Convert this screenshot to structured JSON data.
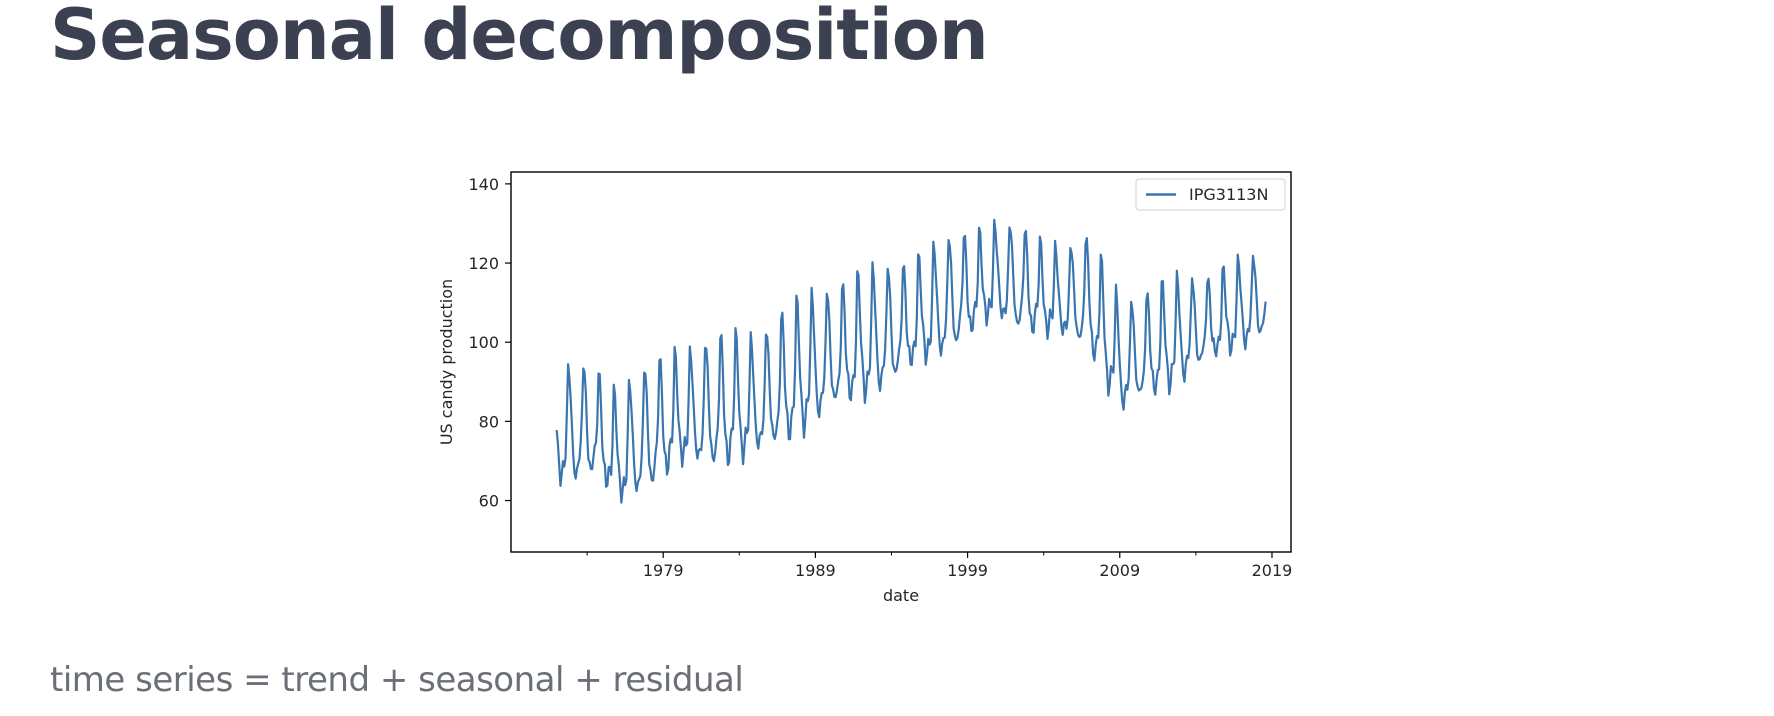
{
  "page": {
    "title": "Seasonal decomposition",
    "caption": "time series = trend + seasonal + residual"
  },
  "chart_data": {
    "type": "line",
    "title": "",
    "xlabel": "date",
    "ylabel": "US candy production",
    "xlim": [
      "1969-01",
      "2020-04"
    ],
    "ylim": [
      47,
      143
    ],
    "x_ticks": [
      "1979",
      "1989",
      "1999",
      "2009",
      "2019"
    ],
    "x_minor_tick_years": [
      1974,
      1984,
      1994,
      2004,
      2014
    ],
    "y_ticks": [
      60,
      80,
      100,
      120,
      140
    ],
    "grid": false,
    "legend": "top-right",
    "colors": {
      "series": "#3b75af",
      "axes": "#000000"
    },
    "series": [
      {
        "name": "IPG3113N",
        "x_start": "1972-01",
        "x_end": "2018-08",
        "frequency": "monthly",
        "trend_knots": {
          "x": [
            "1972-01",
            "1974-06",
            "1976-01",
            "1980-01",
            "1985-01",
            "1990-01",
            "1994-01",
            "1998-01",
            "2001-01",
            "2004-01",
            "2007-01",
            "2009-01",
            "2012-01",
            "2015-01",
            "2018-08"
          ],
          "y": [
            78,
            80,
            73,
            83,
            86,
            98,
            104,
            112,
            118,
            113,
            112,
            96,
            101,
            106,
            112
          ]
        },
        "seasonal_amplitude_knots": {
          "x": [
            "1972-01",
            "1976-01",
            "1982-01",
            "1989-01",
            "1998-01",
            "2004-01",
            "2009-01",
            "2013-01",
            "2018-08"
          ],
          "y": [
            14,
            15,
            16,
            17,
            14,
            12,
            15,
            13,
            10
          ]
        },
        "seasonal_profile_by_month": [
          -0.1,
          -0.45,
          -0.65,
          -0.9,
          -0.8,
          -0.6,
          -0.55,
          -0.45,
          0.1,
          1.0,
          0.9,
          0.45
        ]
      }
    ]
  }
}
